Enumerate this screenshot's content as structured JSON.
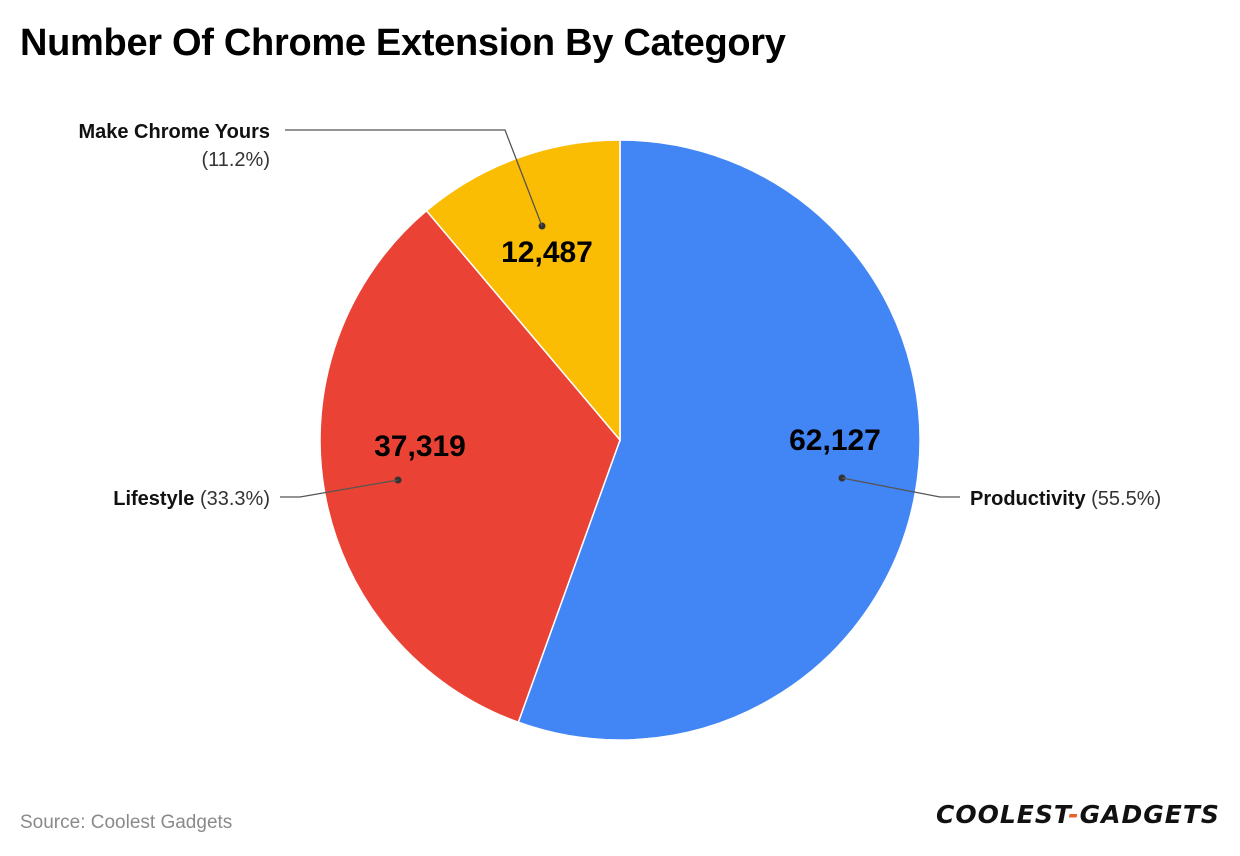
{
  "chart_data": {
    "type": "pie",
    "title": "Number Of Chrome Extension By Category",
    "slices": [
      {
        "label": "Productivity",
        "value": 62127,
        "value_label": "62,127",
        "percent_label": "(55.5%)",
        "color": "#4285f4"
      },
      {
        "label": "Lifestyle",
        "value": 37319,
        "value_label": "37,319",
        "percent_label": "(33.3%)",
        "color": "#ea4335"
      },
      {
        "label": "Make Chrome Yours",
        "value": 12487,
        "value_label": "12,487",
        "percent_label": "(11.2%)",
        "color": "#fbbc04"
      }
    ]
  },
  "footer": {
    "source": "Source: Coolest Gadgets",
    "logo_left": "COOLEST",
    "logo_dash": "-",
    "logo_right": "GADGETS"
  }
}
